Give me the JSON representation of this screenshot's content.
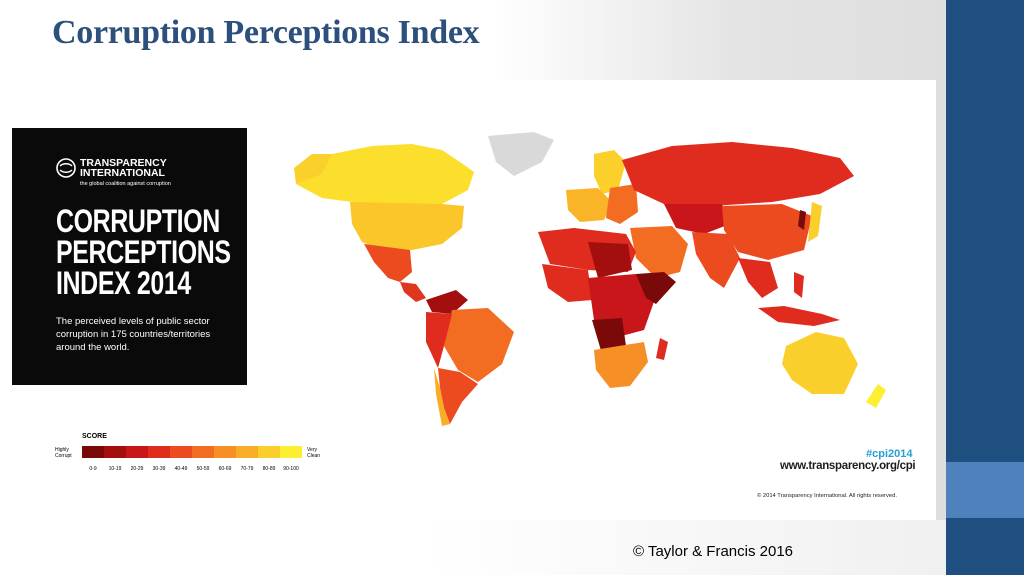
{
  "slide": {
    "title": "Corruption Perceptions Index",
    "footer": "© Taylor & Francis 2016"
  },
  "poster": {
    "org_line1": "TRANSPARENCY",
    "org_line2": "INTERNATIONAL",
    "org_tagline": "the global coalition against corruption",
    "heading_line1": "CORRUPTION",
    "heading_line2": "PERCEPTIONS",
    "heading_line3": "INDEX 2014",
    "description": "The perceived levels of public sector corruption in 175 countries/territories around the world.",
    "hashtag": "#cpi2014",
    "website": "www.transparency.org/cpi",
    "copyright": "© 2014 Transparency International. All rights reserved."
  },
  "legend": {
    "title": "SCORE",
    "low_label": "Highly Corrupt",
    "high_label": "Very Clean",
    "ranges": [
      "0-9",
      "10-19",
      "20-29",
      "30-39",
      "40-49",
      "50-59",
      "60-69",
      "70-79",
      "80-89",
      "90-100"
    ],
    "colors": [
      "#7a0a0a",
      "#a30f0f",
      "#c8161a",
      "#e02b1f",
      "#ec4a1f",
      "#f26c22",
      "#f68f26",
      "#f9ad27",
      "#fbcf2b",
      "#fcee31"
    ]
  },
  "theme": {
    "title_color": "#2d4f7c",
    "bar_color": "#1f4e80",
    "bar_accent": "#4f82bd",
    "hashtag_color": "#23a0d6"
  }
}
